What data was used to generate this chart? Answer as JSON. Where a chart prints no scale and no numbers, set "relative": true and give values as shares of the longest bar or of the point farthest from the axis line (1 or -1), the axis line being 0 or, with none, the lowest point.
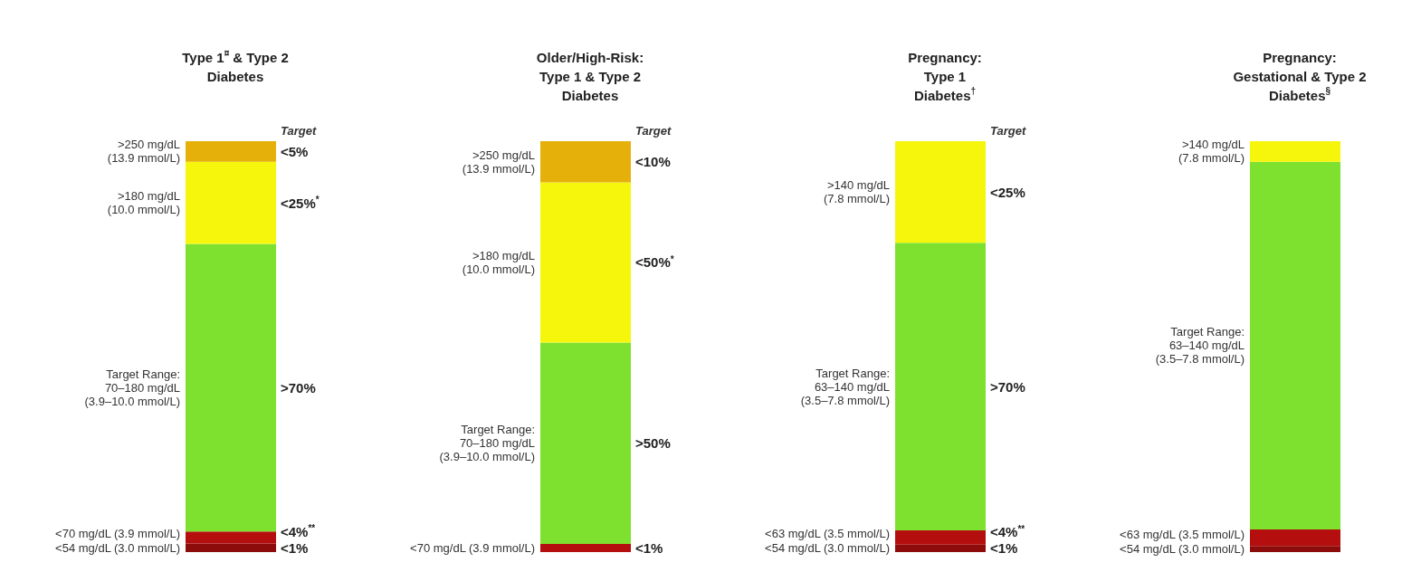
{
  "chart_data": [
    {
      "type": "bar",
      "stacked": true,
      "relative": true,
      "title": "Type 1$^{¤}$ & Type 2\nDiabetes",
      "categories": [
        null
      ],
      "annotations": [
        "Target",
        "<5%",
        "<25%$^{*}$",
        ">70%",
        "<4%$^{**}$",
        "<1%"
      ],
      "series": [
        {
          "name": "<54 mg/dL (3.0 mmol/L)",
          "color": "#8c0c0c",
          "values": [
            0.021
          ]
        },
        {
          "name": "<70 mg/dL (3.9 mmol/L)",
          "color": "#b40e0e",
          "values": [
            0.029
          ]
        },
        {
          "name": "Target Range:\n70–180 mg/dL\n(3.9–10.0 mmol/L)",
          "color": "#7ee12f",
          "values": [
            0.7
          ]
        },
        {
          "name": ">180 mg/dL\n(10.0 mmol/L)",
          "color": "#f6f60c",
          "values": [
            0.2
          ]
        },
        {
          "name": ">250 mg/dL\n(13.9 mmol/L)",
          "color": "#e6b00a",
          "values": [
            0.05
          ]
        }
      ]
    },
    {
      "type": "bar",
      "stacked": true,
      "relative": true,
      "title": "Older/High-Risk:\nType 1 & Type 2\nDiabetes",
      "categories": [
        null
      ],
      "annotations": [
        "Target",
        "<10%",
        "<50%$^{*}$",
        ">50%",
        "<1%"
      ],
      "series": [
        {
          "name": "<70 mg/dL (3.9 mmol/L)",
          "color": "#b40e0e",
          "values": [
            0.02
          ]
        },
        {
          "name": "Target Range:\n70–180 mg/dL\n(3.9–10.0 mmol/L)",
          "color": "#7ee12f",
          "values": [
            0.49
          ]
        },
        {
          "name": ">180 mg/dL\n(10.0 mmol/L)",
          "color": "#f6f60c",
          "values": [
            0.39
          ]
        },
        {
          "name": ">250 mg/dL\n(13.9 mmol/L)",
          "color": "#e6b00a",
          "values": [
            0.1
          ]
        }
      ]
    },
    {
      "type": "bar",
      "stacked": true,
      "relative": true,
      "title": "Pregnancy:\nType 1\nDiabetes$^{†}$",
      "categories": [
        null
      ],
      "annotations": [
        "Target",
        "<25%",
        ">70%",
        "<4%$^{**}$",
        "<1%"
      ],
      "series": [
        {
          "name": "<54 mg/dL (3.0 mmol/L)",
          "color": "#8c0c0c",
          "values": [
            0.018
          ]
        },
        {
          "name": "<63 mg/dL (3.5 mmol/L)",
          "color": "#b40e0e",
          "values": [
            0.035
          ]
        },
        {
          "name": "Target Range:\n63–140 mg/dL\n(3.5–7.8 mmol/L)",
          "color": "#7ee12f",
          "values": [
            0.7
          ]
        },
        {
          "name": ">140 mg/dL\n(7.8 mmol/L)",
          "color": "#f6f60c",
          "values": [
            0.247
          ]
        }
      ]
    },
    {
      "type": "bar",
      "stacked": true,
      "relative": true,
      "title": "Pregnancy:\nGestational & Type 2\nDiabetes$^{§}$",
      "categories": [
        null
      ],
      "series": [
        {
          "name": "<54 mg/dL (3.0 mmol/L)",
          "color": "#8c0c0c",
          "values": [
            0.015
          ]
        },
        {
          "name": "<63 mg/dL (3.5 mmol/L)",
          "color": "#b40e0e",
          "values": [
            0.04
          ]
        },
        {
          "name": "Target Range:\n63–140 mg/dL\n(3.5–7.8 mmol/L)",
          "color": "#7ee12f",
          "values": [
            0.895
          ]
        },
        {
          "name": ">140 mg/dL\n(7.8 mmol/L)",
          "color": "#f6f60c",
          "values": [
            0.05
          ]
        }
      ]
    }
  ]
}
